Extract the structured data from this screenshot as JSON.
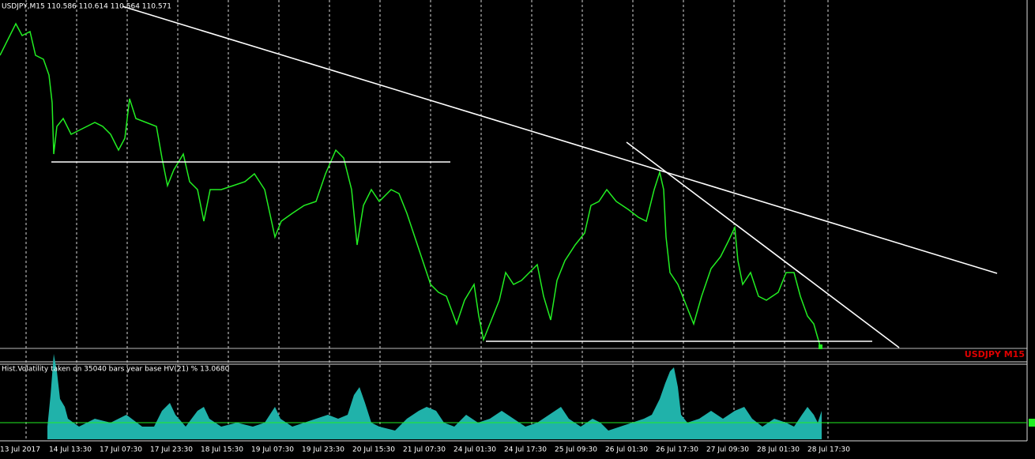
{
  "header": {
    "title": "USDJPY,M15  110.586 110.614 110.564 110.571"
  },
  "symbol_label": "USDJPY M15",
  "indicator": {
    "label": "Hist.Volatility  taken on 35040 bars year base  HV(21) %  13.0680"
  },
  "time_axis": {
    "labels": [
      "13 Jul 2017",
      "14 Jul 13:30",
      "17 Jul 07:30",
      "17 Jul 23:30",
      "18 Jul 15:30",
      "19 Jul 07:30",
      "19 Jul 23:30",
      "20 Jul 15:30",
      "21 Jul 07:30",
      "24 Jul 01:30",
      "24 Jul 17:30",
      "25 Jul 09:30",
      "26 Jul 01:30",
      "26 Jul 17:30",
      "27 Jul 09:30",
      "28 Jul 01:30",
      "28 Jul 17:30"
    ]
  }
}
